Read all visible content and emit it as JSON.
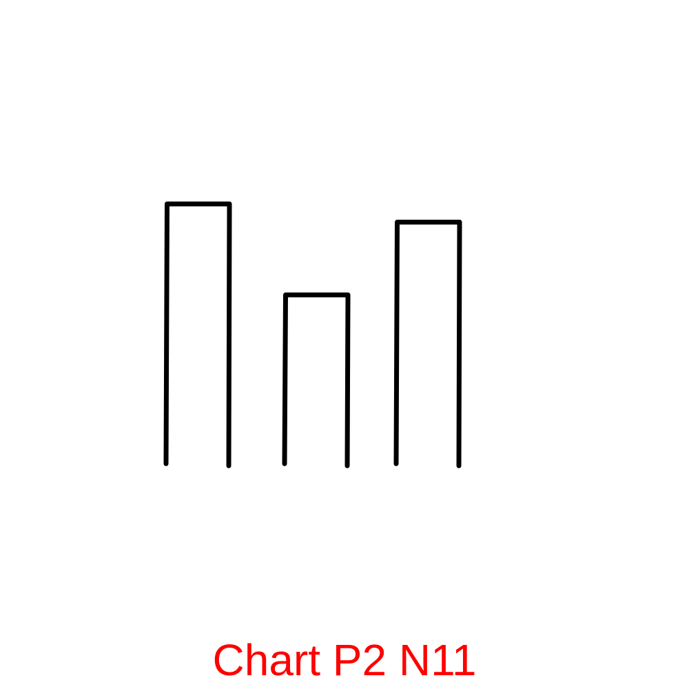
{
  "caption": {
    "text": "Chart P2 N11",
    "color": "#ff0000"
  },
  "chart_data": {
    "type": "bar",
    "style": "hand-drawn outline",
    "categories": [
      "",
      "",
      ""
    ],
    "values": [
      100,
      65,
      93
    ],
    "ylim": [
      0,
      100
    ],
    "grid": false,
    "axes_visible": false,
    "legend": "none",
    "stroke_color": "#000000",
    "fill_color": "none",
    "title": "",
    "xlabel": "",
    "ylabel": ""
  }
}
